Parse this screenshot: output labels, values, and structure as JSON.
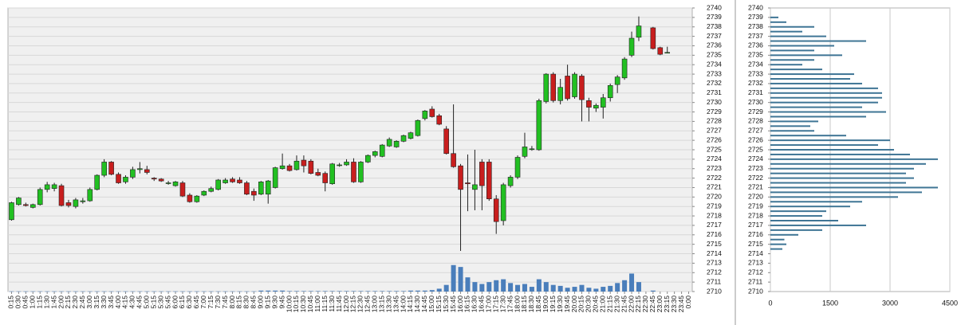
{
  "chart_data": [
    {
      "type": "candlestick",
      "categories": [
        "0:15",
        "0:30",
        "0:45",
        "1:00",
        "1:15",
        "1:30",
        "1:45",
        "2:00",
        "2:15",
        "2:30",
        "2:45",
        "3:00",
        "3:15",
        "3:30",
        "3:45",
        "4:00",
        "4:15",
        "4:30",
        "4:45",
        "5:00",
        "5:15",
        "5:30",
        "5:45",
        "6:00",
        "6:15",
        "6:30",
        "6:45",
        "7:00",
        "7:15",
        "7:30",
        "7:45",
        "8:00",
        "8:15",
        "8:30",
        "8:45",
        "9:00",
        "9:15",
        "9:30",
        "9:45",
        "10:00",
        "10:15",
        "10:30",
        "10:45",
        "11:00",
        "11:15",
        "11:30",
        "11:45",
        "12:00",
        "12:15",
        "12:30",
        "12:45",
        "13:00",
        "13:15",
        "13:30",
        "13:45",
        "14:00",
        "14:15",
        "14:30",
        "14:45",
        "15:00",
        "15:15",
        "15:30",
        "15:45",
        "16:00",
        "16:15",
        "16:30",
        "16:45",
        "17:00",
        "17:15",
        "17:30",
        "17:45",
        "18:00",
        "18:15",
        "18:30",
        "18:45",
        "19:00",
        "19:15",
        "19:30",
        "19:45",
        "20:00",
        "20:15",
        "20:30",
        "20:45",
        "21:00",
        "21:15",
        "21:30",
        "21:45",
        "22:00",
        "22:15",
        "22:30",
        "22:45",
        "23:00",
        "23:15",
        "23:30",
        "23:45",
        "0:00"
      ],
      "open": [
        2717.6,
        2719.2,
        2719.2,
        2718.9,
        2719.2,
        2720.8,
        2720.9,
        2721.2,
        2719.4,
        2719.0,
        2719.5,
        2719.6,
        2720.8,
        2722.3,
        2723.7,
        2722.4,
        2721.6,
        2722.1,
        2722.9,
        2722.9,
        2722.0,
        2721.9,
        2721.5,
        2721.2,
        2721.5,
        2720.2,
        2719.5,
        2720.2,
        2720.6,
        2720.8,
        2721.5,
        2721.9,
        2721.8,
        2721.5,
        2720.6,
        2720.3,
        2720.3,
        2721.0,
        2723.0,
        2723.3,
        2722.9,
        2723.9,
        2723.8,
        2722.6,
        2722.5,
        2721.4,
        2723.4,
        2723.4,
        2723.7,
        2721.6,
        2723.7,
        2724.4,
        2724.3,
        2725.4,
        2725.3,
        2725.9,
        2726.2,
        2726.5,
        2728.3,
        2729.3,
        2728.6,
        2727.2,
        2724.6,
        2723.3,
        2721.5,
        2720.8,
        2723.7,
        2723.7,
        2719.8,
        2717.5,
        2721.2,
        2722.1,
        2724.3,
        2725.1,
        2725.0,
        2730.1,
        2733.0,
        2730.2,
        2732.8,
        2730.6,
        2732.8,
        2730.2,
        2729.4,
        2729.5,
        2730.5,
        2731.9,
        2732.6,
        2735.0,
        2736.9,
        null,
        2737.9,
        2735.8,
        2735.3,
        null,
        null,
        null
      ],
      "high": [
        2719.5,
        2720.0,
        2719.4,
        2719.3,
        2721.0,
        2721.6,
        2721.5,
        2721.4,
        2719.7,
        2719.9,
        2719.9,
        2721.0,
        2722.4,
        2724.0,
        2723.8,
        2722.6,
        2722.3,
        2723.2,
        2723.7,
        2723.3,
        2722.1,
        2722.0,
        2721.7,
        2721.7,
        2721.7,
        2720.4,
        2720.2,
        2720.7,
        2721.1,
        2721.9,
        2722.0,
        2722.1,
        2722.1,
        2721.7,
        2720.9,
        2721.7,
        2721.8,
        2723.2,
        2724.6,
        2723.5,
        2724.4,
        2724.4,
        2724.0,
        2723.0,
        2722.7,
        2723.6,
        2723.6,
        2724.0,
        2724.1,
        2723.8,
        2724.5,
        2724.9,
        2725.6,
        2726.3,
        2726.0,
        2726.6,
        2726.9,
        2728.2,
        2729.2,
        2729.6,
        2728.8,
        2727.5,
        2729.8,
        2723.5,
        2724.5,
        2725.0,
        2724.0,
        2724.0,
        2720.2,
        2721.5,
        2722.3,
        2724.4,
        2726.8,
        2725.4,
        2730.4,
        2733.1,
        2733.2,
        2732.5,
        2734.0,
        2733.2,
        2733.0,
        2730.5,
        2729.9,
        2730.9,
        2732.0,
        2732.9,
        2734.8,
        2737.5,
        2739.1,
        null,
        2738.0,
        2735.9,
        2735.9,
        null,
        null,
        null
      ],
      "low": [
        2717.5,
        2719.1,
        2719.0,
        2718.8,
        2719.1,
        2720.5,
        2720.6,
        2719.0,
        2718.9,
        2718.8,
        2719.3,
        2719.5,
        2720.7,
        2722.1,
        2722.3,
        2721.4,
        2721.4,
        2721.9,
        2722.5,
        2722.4,
        2721.7,
        2721.6,
        2721.3,
        2721.1,
        2720.0,
        2719.4,
        2719.4,
        2720.1,
        2720.5,
        2720.7,
        2721.4,
        2721.5,
        2721.4,
        2720.2,
        2719.6,
        2720.2,
        2719.3,
        2720.9,
        2722.9,
        2722.7,
        2722.8,
        2722.6,
        2722.4,
        2722.2,
        2720.6,
        2721.3,
        2723.2,
        2723.3,
        2721.5,
        2721.5,
        2723.6,
        2724.2,
        2724.2,
        2725.3,
        2725.2,
        2725.8,
        2726.1,
        2726.4,
        2728.1,
        2728.4,
        2727.6,
        2724.5,
        2723.1,
        2714.3,
        2718.5,
        2718.6,
        2718.6,
        2719.6,
        2716.1,
        2717.0,
        2721.0,
        2721.9,
        2724.1,
        2724.9,
        2724.9,
        2729.9,
        2730.0,
        2729.8,
        2730.2,
        2730.4,
        2728.0,
        2728.0,
        2729.0,
        2728.3,
        2730.1,
        2731.0,
        2732.4,
        2734.8,
        2736.5,
        null,
        2735.6,
        2735.0,
        2735.2,
        null,
        null,
        null
      ],
      "close": [
        2719.4,
        2719.9,
        2719.1,
        2719.2,
        2720.8,
        2721.3,
        2721.3,
        2719.1,
        2719.1,
        2719.7,
        2719.6,
        2720.8,
        2722.3,
        2723.7,
        2722.4,
        2721.5,
        2722.1,
        2722.9,
        2723.0,
        2722.6,
        2721.9,
        2721.7,
        2721.5,
        2721.6,
        2720.1,
        2719.5,
        2720.1,
        2720.6,
        2720.9,
        2721.8,
        2721.8,
        2721.6,
        2721.5,
        2720.3,
        2720.2,
        2721.6,
        2721.7,
        2723.1,
        2723.3,
        2722.8,
        2723.8,
        2723.3,
        2722.5,
        2722.3,
        2721.5,
        2723.5,
        2723.4,
        2723.7,
        2721.6,
        2723.7,
        2724.4,
        2724.8,
        2725.5,
        2726.1,
        2725.9,
        2726.5,
        2726.8,
        2728.1,
        2729.1,
        2728.5,
        2727.7,
        2724.6,
        2723.2,
        2720.8,
        2721.4,
        2721.3,
        2721.2,
        2719.8,
        2717.4,
        2721.3,
        2722.1,
        2724.2,
        2725.3,
        2725.1,
        2730.2,
        2733.0,
        2730.2,
        2731.6,
        2730.4,
        2733.0,
        2730.3,
        2729.5,
        2729.7,
        2730.5,
        2731.8,
        2732.7,
        2734.6,
        2736.8,
        2738.1,
        null,
        2735.7,
        2735.1,
        2735.3,
        null,
        null,
        null
      ],
      "volume": [
        2710.02,
        2710.02,
        2710.02,
        2710.02,
        2710.02,
        2710.02,
        2710.02,
        2710.02,
        2710.02,
        2710.02,
        2710.02,
        2710.02,
        2710.02,
        2710.02,
        2710.02,
        2710.02,
        2710.02,
        2710.02,
        2710.02,
        2710.02,
        2710.02,
        2710.02,
        2710.02,
        2710.02,
        2710.02,
        2710.02,
        2710.02,
        2710.02,
        2710.02,
        2710.02,
        2710.02,
        2710.02,
        2710.02,
        2710.02,
        2710.02,
        2710.1,
        2710.1,
        2710.1,
        2710.1,
        2710.05,
        2710.05,
        2710.05,
        2710.05,
        2710.05,
        2710.05,
        2710.05,
        2710.05,
        2710.05,
        2710.05,
        2710.05,
        2710.05,
        2710.05,
        2710.05,
        2710.05,
        2710.05,
        2710.05,
        2710.1,
        2710.1,
        2710.1,
        2710.15,
        2710.3,
        2710.7,
        2712.8,
        2712.6,
        2711.5,
        2711.0,
        2710.8,
        2711.0,
        2711.2,
        2711.3,
        2710.9,
        2710.7,
        2710.8,
        2710.5,
        2711.3,
        2711.0,
        2710.7,
        2710.6,
        2710.4,
        2710.5,
        2710.7,
        2710.4,
        2710.3,
        2710.5,
        2710.6,
        2710.9,
        2711.2,
        2711.9,
        2711.0,
        null,
        2710.1,
        null,
        null,
        null,
        null,
        null
      ],
      "up_color": "#22c022",
      "down_color": "#c81e1e",
      "volume_color": "#4a7ebb",
      "ylim": [
        2710,
        2740
      ],
      "yticks": [
        2710,
        2711,
        2712,
        2713,
        2714,
        2715,
        2716,
        2717,
        2718,
        2719,
        2720,
        2721,
        2722,
        2723,
        2724,
        2725,
        2726,
        2727,
        2728,
        2729,
        2730,
        2731,
        2732,
        2733,
        2734,
        2735,
        2736,
        2737,
        2738,
        2739,
        2740
      ],
      "grid": true
    },
    {
      "type": "bar",
      "orientation": "horizontal",
      "y": [
        2714.5,
        2715,
        2715.5,
        2716,
        2716.5,
        2717,
        2717.5,
        2718,
        2718.5,
        2719,
        2719.5,
        2720,
        2720.5,
        2721,
        2721.5,
        2722,
        2722.5,
        2723,
        2723.5,
        2724,
        2724.5,
        2725,
        2725.5,
        2726,
        2726.5,
        2727,
        2727.5,
        2728,
        2728.5,
        2729,
        2729.5,
        2730,
        2730.5,
        2731,
        2731.5,
        2732,
        2732.5,
        2733,
        2733.5,
        2734,
        2734.5,
        2735,
        2735.5,
        2736,
        2736.5,
        2737,
        2737.5,
        2738,
        2738.5,
        2739
      ],
      "values": [
        300,
        400,
        350,
        700,
        1300,
        2400,
        1700,
        1300,
        1400,
        2000,
        2300,
        3200,
        3800,
        4200,
        3400,
        3600,
        3400,
        3600,
        3900,
        4200,
        3500,
        3100,
        2700,
        3000,
        1900,
        1100,
        1000,
        1200,
        2400,
        2900,
        2300,
        2700,
        2800,
        2800,
        2700,
        2300,
        2000,
        2100,
        1300,
        800,
        1100,
        1800,
        1100,
        1600,
        2400,
        1400,
        800,
        1100,
        400,
        200
      ],
      "color": "#3f7595",
      "xlim": [
        0,
        4500
      ],
      "xticks": [
        0,
        1500,
        3000,
        4500
      ],
      "ylim": [
        2710,
        2740
      ],
      "yticks": [
        2710,
        2711,
        2712,
        2713,
        2714,
        2715,
        2716,
        2717,
        2718,
        2719,
        2720,
        2721,
        2722,
        2723,
        2724,
        2725,
        2726,
        2727,
        2728,
        2729,
        2730,
        2731,
        2732,
        2733,
        2734,
        2735,
        2736,
        2737,
        2738,
        2739,
        2740
      ],
      "grid": true
    }
  ]
}
